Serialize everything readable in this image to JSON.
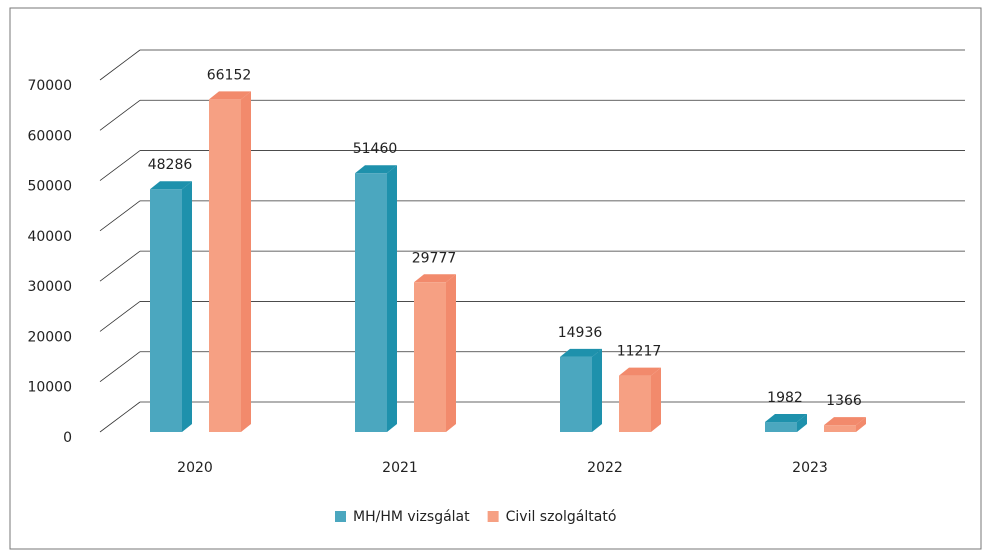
{
  "chart_data": {
    "type": "bar3d",
    "categories": [
      "2020",
      "2021",
      "2022",
      "2023"
    ],
    "series": [
      {
        "name": "MH/HM vizsgálat",
        "color": "#4ba7bf",
        "side_color": "#1e91ac",
        "values": [
          48286,
          51460,
          14936,
          1982
        ]
      },
      {
        "name": "Civil szolgáltató",
        "color": "#f6a083",
        "side_color": "#f28a6c",
        "values": [
          66152,
          29777,
          11217,
          1366
        ]
      }
    ],
    "ylim": [
      0,
      70000
    ],
    "yticks": [
      0,
      10000,
      20000,
      30000,
      40000,
      50000,
      60000,
      70000
    ],
    "grid": true,
    "legend": "bottom"
  }
}
